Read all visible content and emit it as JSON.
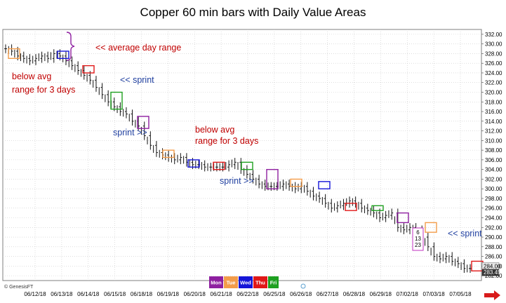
{
  "chart_data": {
    "type": "bar",
    "title": "Copper 60 min bars with Daily Value Areas",
    "xlabel": "",
    "ylabel": "",
    "ylim": [
      281,
      333
    ],
    "ytick_step": 2,
    "grid": true,
    "x_tick_labels": [
      "06/12/18",
      "06/13/18",
      "06/14/18",
      "06/15/18",
      "06/18/18",
      "06/19/18",
      "06/20/18",
      "06/21/18",
      "06/22/18",
      "06/25/18",
      "06/26/18",
      "06/27/18",
      "06/28/18",
      "06/29/18",
      "07/02/18",
      "07/03/18",
      "07/05/18"
    ],
    "series": [
      {
        "values": [
          329,
          328.5,
          327.5,
          327,
          326.5,
          327,
          327.5,
          327,
          328,
          327.5,
          326.5,
          325.5,
          324.5,
          323.5,
          322.5,
          321,
          319.5,
          318,
          317,
          316,
          315.5,
          314,
          313,
          311,
          309,
          307.5,
          307,
          306.5,
          306,
          306.5,
          305.5,
          305,
          305,
          304.5,
          304.5,
          304.5,
          304.5,
          305,
          305.5,
          304,
          303,
          302,
          301,
          300.5,
          300.5,
          300.5,
          301,
          300.5,
          300,
          300.5,
          299.5,
          298.5,
          298,
          297,
          296,
          296.5,
          297,
          297.5,
          297,
          296,
          295.5,
          295,
          294,
          294.5,
          295,
          292,
          291.5,
          292,
          291.5,
          290,
          288,
          286,
          285.5,
          286,
          285,
          284.5,
          283.5,
          283.5
        ]
      }
    ],
    "last_price_labels": [
      "284.00",
      "283.45"
    ],
    "value_areas": [
      {
        "day": "Tue",
        "hi": 329,
        "lo": 327
      },
      {
        "day": "Wed",
        "hi": 328.5,
        "lo": 327
      },
      {
        "day": "Thu",
        "hi": 325.5,
        "lo": 324
      },
      {
        "day": "Fri",
        "hi": 320,
        "lo": 316.5
      },
      {
        "day": "Mon",
        "hi": 315,
        "lo": 312.5
      },
      {
        "day": "Tue",
        "hi": 308,
        "lo": 306.5
      },
      {
        "day": "Wed",
        "hi": 306,
        "lo": 304.5
      },
      {
        "day": "Thu",
        "hi": 305.5,
        "lo": 304
      },
      {
        "day": "Fri",
        "hi": 305.5,
        "lo": 304
      },
      {
        "day": "Mon",
        "hi": 304,
        "lo": 300
      },
      {
        "day": "Tue",
        "hi": 302,
        "lo": 300.5
      },
      {
        "day": "Wed",
        "hi": 301.5,
        "lo": 300
      },
      {
        "day": "Thu",
        "hi": 297,
        "lo": 295.5
      },
      {
        "day": "Fri",
        "hi": 296.5,
        "lo": 295.5
      },
      {
        "day": "Mon",
        "hi": 295,
        "lo": 293
      },
      {
        "day": "Tue",
        "hi": 293,
        "lo": 291
      },
      {
        "day": "Thu",
        "hi": 285,
        "lo": 283
      }
    ],
    "annotations": [
      {
        "text": "<< average day range",
        "color": "#c00000"
      },
      {
        "text": "below avg",
        "color": "#c00000"
      },
      {
        "text": "range for 3 days",
        "color": "#c00000"
      },
      {
        "text": "<< sprint",
        "color": "#1f3f9f"
      },
      {
        "text": "sprint >>",
        "color": "#1f3f9f"
      },
      {
        "text": "below avg",
        "color": "#c00000"
      },
      {
        "text": "range for 3 days",
        "color": "#c00000"
      },
      {
        "text": "sprint >>",
        "color": "#1f3f9f"
      },
      {
        "text": "<< sprint",
        "color": "#1f3f9f"
      }
    ],
    "sequence_labels": [
      "6",
      "13",
      "23"
    ],
    "legend": [
      {
        "label": "Mon",
        "color": "#8e1fa0"
      },
      {
        "label": "Tue",
        "color": "#f39c4a"
      },
      {
        "label": "Wed",
        "color": "#1515d8"
      },
      {
        "label": "Thu",
        "color": "#e01818"
      },
      {
        "label": "Fri",
        "color": "#1ea020"
      }
    ],
    "watermark": "© GenesisFT"
  }
}
